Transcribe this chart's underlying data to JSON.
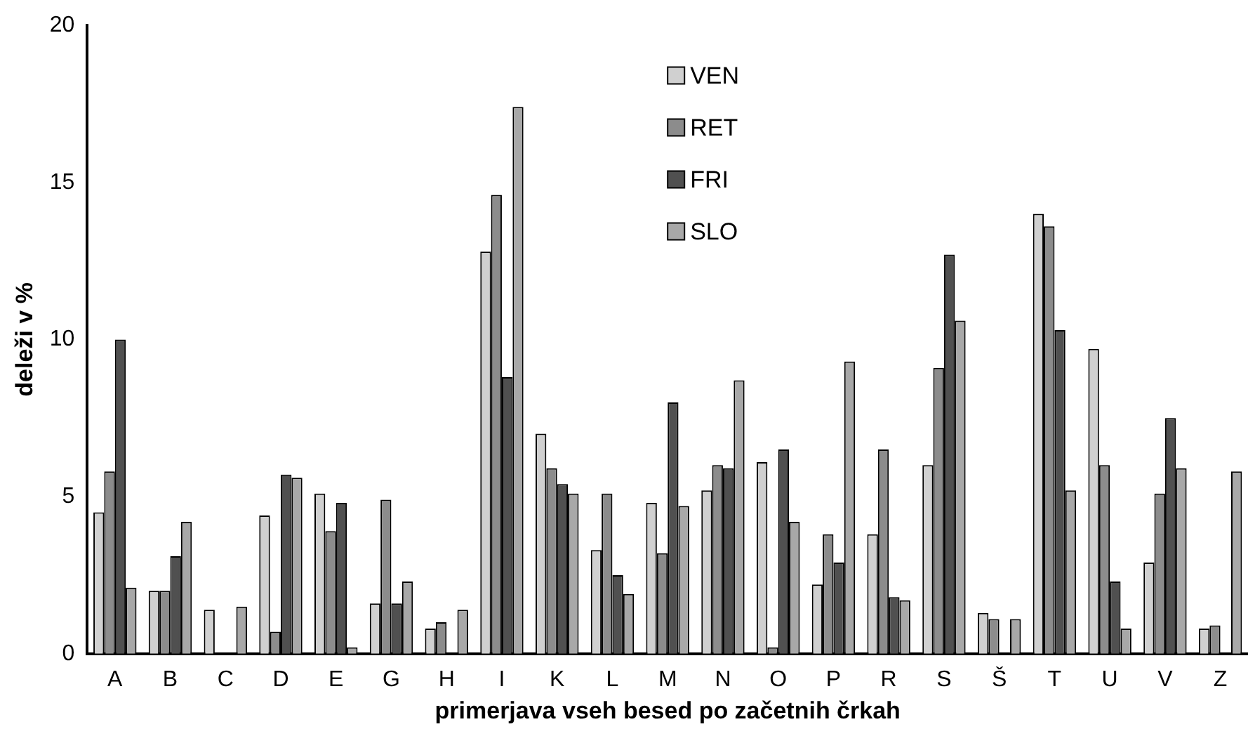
{
  "chart_data": {
    "type": "bar",
    "xlabel": "primerjava vseh besed po začetnih črkah",
    "ylabel": "deleži v %",
    "categories": [
      "A",
      "B",
      "C",
      "D",
      "E",
      "G",
      "H",
      "I",
      "K",
      "L",
      "M",
      "N",
      "O",
      "P",
      "R",
      "S",
      "Š",
      "T",
      "U",
      "V",
      "Z"
    ],
    "series": [
      {
        "name": "VEN",
        "color": "#d0d0d0",
        "values": [
          4.5,
          2.0,
          1.4,
          4.4,
          5.1,
          1.6,
          0.8,
          12.8,
          7.0,
          3.3,
          4.8,
          5.2,
          6.1,
          2.2,
          3.8,
          6.0,
          1.3,
          14.0,
          9.7,
          2.9,
          0.8
        ]
      },
      {
        "name": "RET",
        "color": "#8c8c8c",
        "values": [
          5.8,
          2.0,
          0,
          0.7,
          3.9,
          4.9,
          1.0,
          14.6,
          5.9,
          5.1,
          3.2,
          6.0,
          0.2,
          3.8,
          6.5,
          9.1,
          1.1,
          13.6,
          6.0,
          5.1,
          0.9
        ]
      },
      {
        "name": "FRI",
        "color": "#505050",
        "values": [
          10.0,
          3.1,
          0,
          5.7,
          4.8,
          1.6,
          0,
          8.8,
          5.4,
          2.5,
          8.0,
          5.9,
          6.5,
          2.9,
          1.8,
          12.7,
          0,
          10.3,
          2.3,
          7.5,
          0
        ]
      },
      {
        "name": "SLO",
        "color": "#a8a8a8",
        "values": [
          2.1,
          4.2,
          1.5,
          5.6,
          0.2,
          2.3,
          1.4,
          17.4,
          5.1,
          1.9,
          4.7,
          8.7,
          4.2,
          9.3,
          1.7,
          10.6,
          1.1,
          5.2,
          0.8,
          5.9,
          5.8
        ]
      }
    ],
    "ylim": [
      0,
      20
    ],
    "yticks": [
      0,
      5,
      10,
      15,
      20
    ],
    "grid": false,
    "legend": "top"
  }
}
